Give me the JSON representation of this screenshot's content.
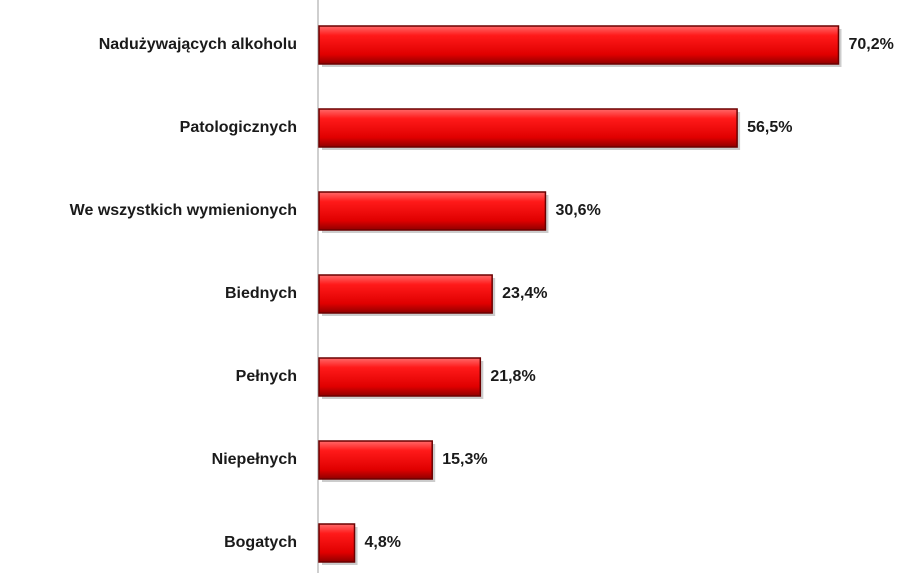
{
  "chart_data": {
    "type": "bar",
    "orientation": "horizontal",
    "categories": [
      "Nadużywających alkoholu",
      "Patologicznych",
      "We wszystkich wymienionych",
      "Biednych",
      "Pełnych",
      "Niepełnych",
      "Bogatych"
    ],
    "values": [
      70.2,
      56.5,
      30.6,
      23.4,
      21.8,
      15.3,
      4.8
    ],
    "value_labels": [
      "70,2%",
      "56,5%",
      "30,6%",
      "23,4%",
      "21,8%",
      "15,3%",
      "4,8%"
    ],
    "color": "#ee0000",
    "xlim": [
      0,
      80
    ]
  }
}
